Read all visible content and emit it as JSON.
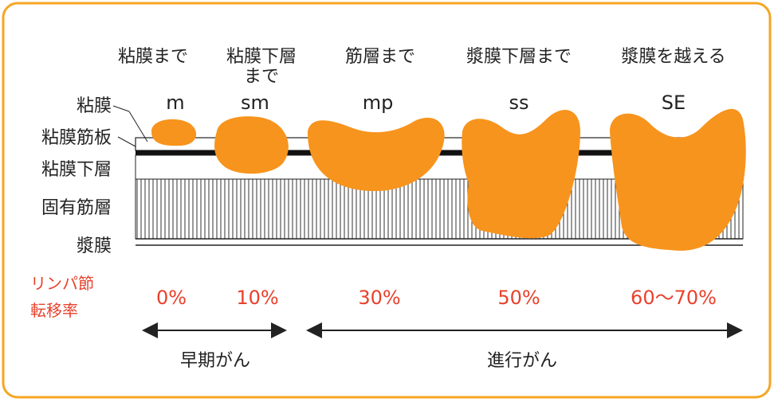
{
  "columns": [
    {
      "depth": [
        "粘膜まで"
      ],
      "code": "m",
      "rate": "0%"
    },
    {
      "depth": [
        "粘膜下層",
        "まで"
      ],
      "code": "sm",
      "rate": "10%"
    },
    {
      "depth": [
        "筋層まで"
      ],
      "code": "mp",
      "rate": "30%"
    },
    {
      "depth": [
        "漿膜下層まで"
      ],
      "code": "ss",
      "rate": "50%"
    },
    {
      "depth": [
        "漿膜を越える"
      ],
      "code": "SE",
      "rate": "60〜70%"
    }
  ],
  "layers": [
    "粘膜",
    "粘膜筋板",
    "粘膜下層",
    "固有筋層",
    "漿膜"
  ],
  "rate_label": [
    "リンパ節",
    "転移率"
  ],
  "stages": [
    "早期がん",
    "進行がん"
  ]
}
